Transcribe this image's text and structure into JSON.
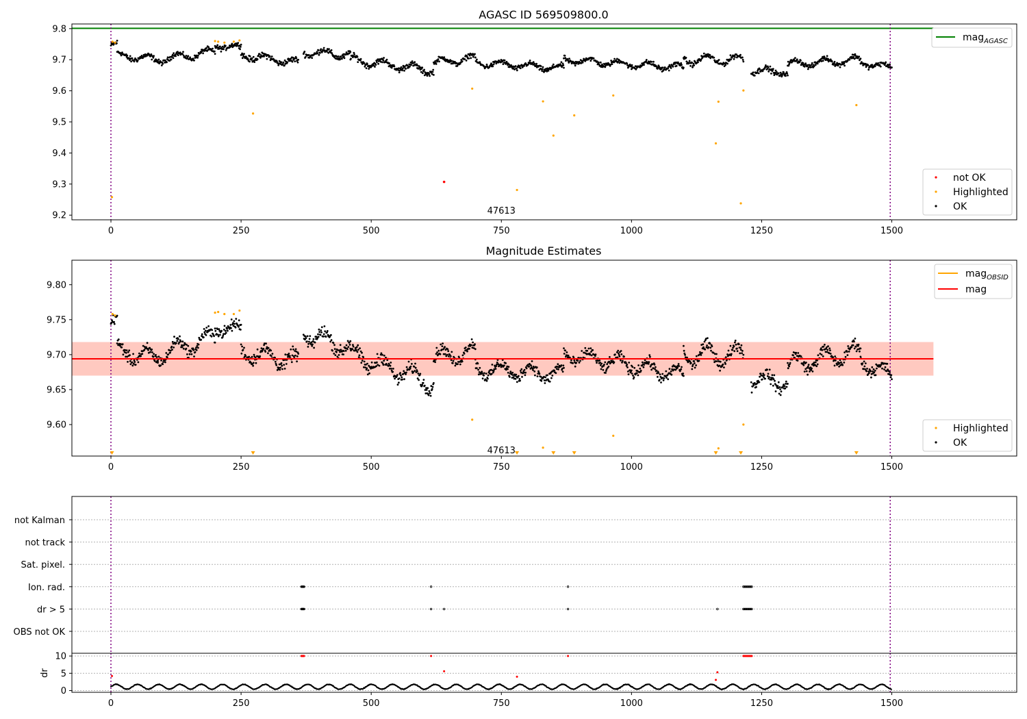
{
  "chart_data": [
    {
      "id": "agasc_panel",
      "type": "scatter",
      "title": "AGASC ID 569509800.0",
      "xlim": [
        -75,
        1740
      ],
      "ylim": [
        9.185,
        9.815
      ],
      "xticks": [
        0,
        250,
        500,
        750,
        1000,
        1250,
        1500
      ],
      "yticks": [
        9.2,
        9.3,
        9.4,
        9.5,
        9.6,
        9.7,
        9.8
      ],
      "ytick_labels": [
        "9.2",
        "9.3",
        "9.4",
        "9.5",
        "9.6",
        "9.7",
        "9.8"
      ],
      "annotation": "47613",
      "annotation_xy": [
        750,
        9.205
      ],
      "vlines": [
        0,
        1497
      ],
      "hlines": [
        {
          "name": "mag_AGASC",
          "y": 9.801,
          "x": [
            -75,
            1580
          ],
          "color": "#008000"
        }
      ],
      "ok_segments": [
        {
          "x": [
            0,
            12
          ],
          "y0": 9.745,
          "y1": 9.748,
          "amp": 0.008,
          "noise": 0.012
        },
        {
          "x": [
            12,
            90
          ],
          "y0": 9.715,
          "y1": 9.7,
          "amp": 0.01,
          "noise": 0.013
        },
        {
          "x": [
            90,
            200
          ],
          "y0": 9.7,
          "y1": 9.725,
          "amp": 0.012,
          "noise": 0.012
        },
        {
          "x": [
            200,
            250
          ],
          "y0": 9.745,
          "y1": 9.74,
          "amp": 0.008,
          "noise": 0.012
        },
        {
          "x": [
            250,
            360
          ],
          "y0": 9.715,
          "y1": 9.69,
          "amp": 0.01,
          "noise": 0.014
        },
        {
          "x": [
            370,
            460
          ],
          "y0": 9.725,
          "y1": 9.715,
          "amp": 0.012,
          "noise": 0.014
        },
        {
          "x": [
            460,
            620
          ],
          "y0": 9.7,
          "y1": 9.665,
          "amp": 0.012,
          "noise": 0.014
        },
        {
          "x": [
            620,
            700
          ],
          "y0": 9.69,
          "y1": 9.705,
          "amp": 0.012,
          "noise": 0.012
        },
        {
          "x": [
            700,
            870
          ],
          "y0": 9.69,
          "y1": 9.672,
          "amp": 0.01,
          "noise": 0.012
        },
        {
          "x": [
            870,
            1000
          ],
          "y0": 9.7,
          "y1": 9.685,
          "amp": 0.01,
          "noise": 0.012
        },
        {
          "x": [
            1000,
            1100
          ],
          "y0": 9.685,
          "y1": 9.675,
          "amp": 0.01,
          "noise": 0.012
        },
        {
          "x": [
            1100,
            1215
          ],
          "y0": 9.7,
          "y1": 9.7,
          "amp": 0.014,
          "noise": 0.013
        },
        {
          "x": [
            1230,
            1300
          ],
          "y0": 9.665,
          "y1": 9.66,
          "amp": 0.01,
          "noise": 0.013
        },
        {
          "x": [
            1300,
            1440
          ],
          "y0": 9.685,
          "y1": 9.7,
          "amp": 0.012,
          "noise": 0.012
        },
        {
          "x": [
            1440,
            1500
          ],
          "y0": 9.69,
          "y1": 9.675,
          "amp": 0.008,
          "noise": 0.012
        }
      ],
      "highlighted_points": [
        [
          2,
          9.258
        ],
        [
          3,
          9.758
        ],
        [
          8,
          9.755
        ],
        [
          200,
          9.76
        ],
        [
          206,
          9.758
        ],
        [
          218,
          9.755
        ],
        [
          236,
          9.758
        ],
        [
          247,
          9.762
        ],
        [
          273,
          9.527
        ],
        [
          694,
          9.607
        ],
        [
          780,
          9.281
        ],
        [
          830,
          9.566
        ],
        [
          850,
          9.456
        ],
        [
          890,
          9.521
        ],
        [
          965,
          9.585
        ],
        [
          1162,
          9.431
        ],
        [
          1167,
          9.565
        ],
        [
          1210,
          9.238
        ],
        [
          1215,
          9.601
        ],
        [
          1432,
          9.554
        ]
      ],
      "not_ok_points": [
        [
          640,
          9.307
        ]
      ],
      "legend_main": [
        {
          "label": "not OK",
          "color": "#ff0000"
        },
        {
          "label": "Highlighted",
          "color": "#ffa500"
        },
        {
          "label": "OK",
          "color": "#000000"
        }
      ],
      "legend_line": {
        "label": "mag",
        "sub": "AGASC",
        "color": "#008000"
      }
    },
    {
      "id": "estimates_panel",
      "type": "scatter",
      "title": "Magnitude Estimates",
      "xlim": [
        -75,
        1740
      ],
      "ylim": [
        9.555,
        9.835
      ],
      "xticks": [
        0,
        250,
        500,
        750,
        1000,
        1250,
        1500
      ],
      "yticks": [
        9.6,
        9.65,
        9.7,
        9.75,
        9.8
      ],
      "ytick_labels": [
        "9.60",
        "9.65",
        "9.70",
        "9.75",
        "9.80"
      ],
      "annotation": "47613",
      "annotation_xy": [
        750,
        9.559
      ],
      "vlines": [
        0,
        1497
      ],
      "band_outer": {
        "y": [
          9.67,
          9.718
        ],
        "x": [
          -75,
          1580
        ],
        "color": "#ffc0cb",
        "opacity": 0.5
      },
      "band_inner": {
        "y": [
          9.67,
          9.718
        ],
        "x": [
          -75,
          1580
        ],
        "color": "#ffa07a",
        "opacity": 0.35
      },
      "mean_line": {
        "name": "mag",
        "y": 9.694,
        "x": [
          -75,
          1580
        ],
        "color": "#ff0000"
      },
      "obsid_line": {
        "name": "mag_OBSID",
        "y": 9.694,
        "color": "#ffa500"
      },
      "ok_segments": [
        {
          "x": [
            0,
            12
          ],
          "y0": 9.745,
          "y1": 9.748,
          "amp": 0.008,
          "noise": 0.012
        },
        {
          "x": [
            12,
            90
          ],
          "y0": 9.705,
          "y1": 9.695,
          "amp": 0.01,
          "noise": 0.013
        },
        {
          "x": [
            90,
            200
          ],
          "y0": 9.7,
          "y1": 9.725,
          "amp": 0.012,
          "noise": 0.012
        },
        {
          "x": [
            200,
            250
          ],
          "y0": 9.74,
          "y1": 9.735,
          "amp": 0.008,
          "noise": 0.012
        },
        {
          "x": [
            250,
            360
          ],
          "y0": 9.705,
          "y1": 9.69,
          "amp": 0.01,
          "noise": 0.014
        },
        {
          "x": [
            370,
            460
          ],
          "y0": 9.73,
          "y1": 9.71,
          "amp": 0.012,
          "noise": 0.014
        },
        {
          "x": [
            460,
            620
          ],
          "y0": 9.7,
          "y1": 9.66,
          "amp": 0.012,
          "noise": 0.014
        },
        {
          "x": [
            620,
            700
          ],
          "y0": 9.695,
          "y1": 9.705,
          "amp": 0.012,
          "noise": 0.012
        },
        {
          "x": [
            700,
            870
          ],
          "y0": 9.68,
          "y1": 9.672,
          "amp": 0.01,
          "noise": 0.012
        },
        {
          "x": [
            870,
            1000
          ],
          "y0": 9.7,
          "y1": 9.685,
          "amp": 0.01,
          "noise": 0.012
        },
        {
          "x": [
            1000,
            1100
          ],
          "y0": 9.685,
          "y1": 9.67,
          "amp": 0.01,
          "noise": 0.012
        },
        {
          "x": [
            1100,
            1215
          ],
          "y0": 9.7,
          "y1": 9.7,
          "amp": 0.014,
          "noise": 0.013
        },
        {
          "x": [
            1230,
            1300
          ],
          "y0": 9.665,
          "y1": 9.66,
          "amp": 0.01,
          "noise": 0.013
        },
        {
          "x": [
            1300,
            1440
          ],
          "y0": 9.685,
          "y1": 9.705,
          "amp": 0.012,
          "noise": 0.012
        },
        {
          "x": [
            1440,
            1500
          ],
          "y0": 9.69,
          "y1": 9.67,
          "amp": 0.008,
          "noise": 0.012
        }
      ],
      "highlighted_points": [
        [
          3,
          9.758
        ],
        [
          8,
          9.756
        ],
        [
          200,
          9.76
        ],
        [
          206,
          9.761
        ],
        [
          218,
          9.758
        ],
        [
          236,
          9.758
        ],
        [
          247,
          9.763
        ],
        [
          694,
          9.607
        ],
        [
          830,
          9.567
        ],
        [
          965,
          9.584
        ],
        [
          1167,
          9.566
        ],
        [
          1215,
          9.6
        ]
      ],
      "highlighted_offscale_x": [
        2,
        273,
        780,
        850,
        890,
        1162,
        1210,
        1432
      ],
      "legend_lines": [
        {
          "label": "mag",
          "sub": "OBSID",
          "color": "#ffa500"
        },
        {
          "label": "mag",
          "sub": "",
          "color": "#ff0000"
        }
      ],
      "legend_points": [
        {
          "label": "Highlighted",
          "color": "#ffa500"
        },
        {
          "label": "OK",
          "color": "#000000"
        }
      ]
    },
    {
      "id": "flags_panel",
      "type": "scatter",
      "xlim": [
        -75,
        1740
      ],
      "xticks": [
        0,
        250,
        500,
        750,
        1000,
        1250,
        1500
      ],
      "vlines": [
        0,
        1497
      ],
      "flag_rows": [
        {
          "label": "not Kalman",
          "x": []
        },
        {
          "label": "not track",
          "x": []
        },
        {
          "label": "Sat. pixel.",
          "x": []
        },
        {
          "label": "Ion. rad.",
          "x": [
            366,
            367,
            368,
            369,
            370,
            371,
            615,
            878,
            1215,
            1217,
            1219,
            1221,
            1223,
            1225,
            1227,
            1229,
            1231
          ]
        },
        {
          "label": "dr > 5",
          "x": [
            366,
            367,
            368,
            369,
            370,
            371,
            615,
            640,
            878,
            1165,
            1215,
            1217,
            1219,
            1221,
            1223,
            1225,
            1227,
            1229,
            1231
          ]
        },
        {
          "label": "OBS not OK",
          "x": []
        }
      ]
    },
    {
      "id": "dr_panel",
      "type": "scatter",
      "ylabel": "dr",
      "xlim": [
        -75,
        1740
      ],
      "ylim": [
        -0.5,
        10.8
      ],
      "xticks": [
        0,
        250,
        500,
        750,
        1000,
        1250,
        1500
      ],
      "xtick_labels": [
        "0",
        "250",
        "500",
        "750",
        "1000",
        "1250",
        "1500"
      ],
      "yticks": [
        0,
        5,
        10
      ],
      "ytick_labels": [
        "0",
        "5",
        "10"
      ],
      "vlines": [
        0,
        1497
      ],
      "ok_range": [
        0,
        1500
      ],
      "ok_mean": 1.1,
      "ok_amp": 0.7,
      "red_points": [
        [
          2,
          4.2
        ],
        [
          366,
          10
        ],
        [
          367,
          10
        ],
        [
          368,
          10
        ],
        [
          369,
          10
        ],
        [
          370,
          10
        ],
        [
          371,
          10
        ],
        [
          615,
          10
        ],
        [
          640,
          5.6
        ],
        [
          780,
          4.0
        ],
        [
          878,
          10
        ],
        [
          1162,
          3.1
        ],
        [
          1165,
          5.3
        ],
        [
          1215,
          10
        ],
        [
          1217,
          10
        ],
        [
          1219,
          10
        ],
        [
          1221,
          10
        ],
        [
          1223,
          10
        ],
        [
          1225,
          10
        ],
        [
          1227,
          10
        ],
        [
          1229,
          10
        ],
        [
          1231,
          10
        ]
      ]
    }
  ]
}
